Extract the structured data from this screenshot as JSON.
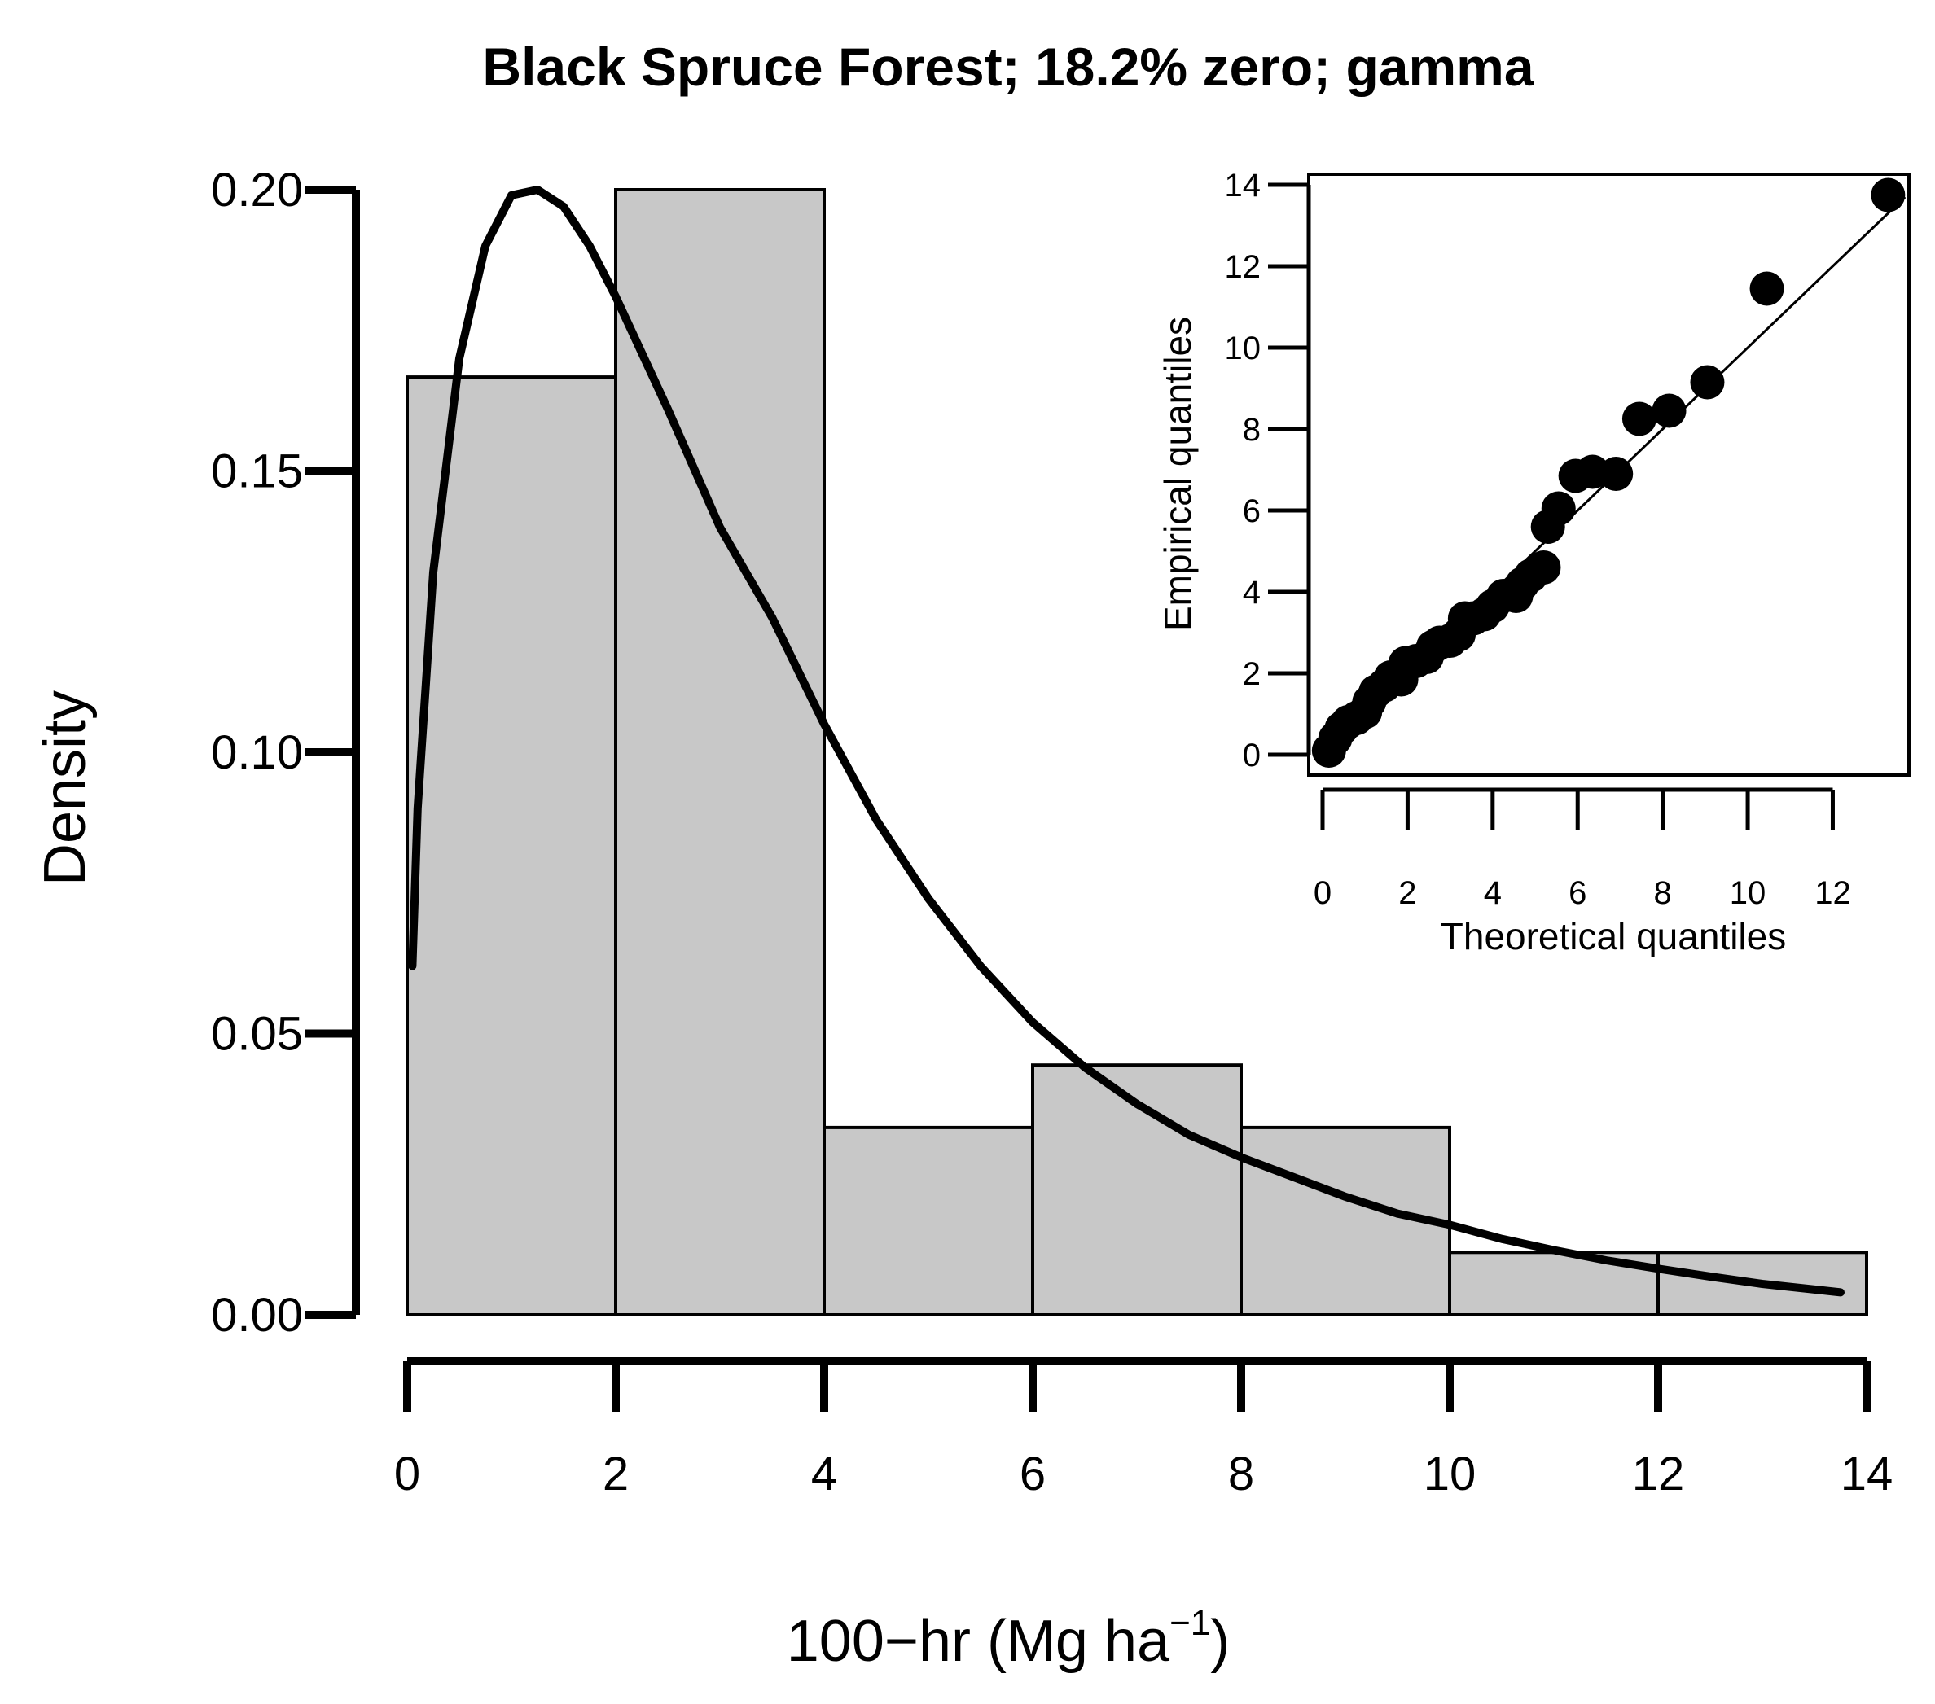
{
  "chart_data": [
    {
      "type": "bar",
      "title": "Black Spruce Forest; 18.2% zero; gamma",
      "xlabel": "100−hr (Mg ha",
      "xlabel_superscript": "−1",
      "xlabel_suffix": ")",
      "ylabel": "Density",
      "xlim": [
        0,
        14
      ],
      "ylim": [
        0,
        0.2
      ],
      "x_ticks": [
        "0",
        "2",
        "4",
        "6",
        "8",
        "10",
        "12",
        "14"
      ],
      "y_ticks": [
        "0.00",
        "0.05",
        "0.10",
        "0.15",
        "0.20"
      ],
      "bins": [
        {
          "x0": 0,
          "x1": 2,
          "density": 0.1667
        },
        {
          "x0": 2,
          "x1": 4,
          "density": 0.2
        },
        {
          "x0": 4,
          "x1": 6,
          "density": 0.0333
        },
        {
          "x0": 6,
          "x1": 8,
          "density": 0.0444
        },
        {
          "x0": 8,
          "x1": 10,
          "density": 0.0333
        },
        {
          "x0": 10,
          "x1": 12,
          "density": 0.0111
        },
        {
          "x0": 12,
          "x1": 14,
          "density": 0.0111
        }
      ],
      "fitted_curve": {
        "distribution": "gamma",
        "points": [
          [
            0.05,
            0.062
          ],
          [
            0.1,
            0.09
          ],
          [
            0.25,
            0.132
          ],
          [
            0.5,
            0.17
          ],
          [
            0.75,
            0.19
          ],
          [
            1.0,
            0.199
          ],
          [
            1.25,
            0.2
          ],
          [
            1.5,
            0.197
          ],
          [
            1.75,
            0.19
          ],
          [
            2.0,
            0.181
          ],
          [
            2.5,
            0.161
          ],
          [
            3.0,
            0.14
          ],
          [
            3.5,
            0.124
          ],
          [
            4.0,
            0.105
          ],
          [
            4.5,
            0.088
          ],
          [
            5.0,
            0.074
          ],
          [
            5.5,
            0.062
          ],
          [
            6.0,
            0.052
          ],
          [
            6.5,
            0.044
          ],
          [
            7.0,
            0.0375
          ],
          [
            7.5,
            0.032
          ],
          [
            8.0,
            0.028
          ],
          [
            8.5,
            0.0245
          ],
          [
            9.0,
            0.021
          ],
          [
            9.5,
            0.018
          ],
          [
            10.0,
            0.016
          ],
          [
            10.5,
            0.0135
          ],
          [
            11.0,
            0.0115
          ],
          [
            11.5,
            0.0097
          ],
          [
            12.0,
            0.0082
          ],
          [
            12.5,
            0.0068
          ],
          [
            13.0,
            0.0055
          ],
          [
            13.5,
            0.0045
          ],
          [
            13.75,
            0.004
          ]
        ]
      },
      "colors": {
        "bar_fill": "#c8c8c8",
        "bar_stroke": "#000000",
        "curve": "#000000"
      }
    },
    {
      "type": "scatter",
      "xlabel": "Theoretical quantiles",
      "ylabel": "Empirical quantiles",
      "xlim": [
        0,
        13.6
      ],
      "ylim": [
        0,
        14
      ],
      "x_ticks": [
        "0",
        "2",
        "4",
        "6",
        "8",
        "10",
        "12"
      ],
      "y_ticks": [
        "0",
        "2",
        "4",
        "6",
        "8",
        "10",
        "12",
        "14"
      ],
      "reference_line": [
        [
          0,
          0
        ],
        [
          13.7,
          13.7
        ]
      ],
      "points": [
        [
          0.15,
          0.1
        ],
        [
          0.3,
          0.4
        ],
        [
          0.45,
          0.65
        ],
        [
          0.6,
          0.8
        ],
        [
          0.8,
          0.9
        ],
        [
          1.0,
          1.05
        ],
        [
          1.1,
          1.3
        ],
        [
          1.25,
          1.55
        ],
        [
          1.45,
          1.7
        ],
        [
          1.6,
          1.9
        ],
        [
          1.85,
          1.85
        ],
        [
          1.95,
          2.25
        ],
        [
          2.2,
          2.3
        ],
        [
          2.45,
          2.4
        ],
        [
          2.6,
          2.65
        ],
        [
          2.75,
          2.75
        ],
        [
          3.0,
          2.8
        ],
        [
          3.2,
          2.95
        ],
        [
          3.35,
          3.35
        ],
        [
          3.55,
          3.35
        ],
        [
          3.8,
          3.45
        ],
        [
          4.0,
          3.65
        ],
        [
          4.25,
          3.9
        ],
        [
          4.55,
          3.9
        ],
        [
          4.7,
          4.2
        ],
        [
          4.9,
          4.4
        ],
        [
          5.2,
          4.6
        ],
        [
          5.3,
          5.6
        ],
        [
          5.55,
          6.05
        ],
        [
          5.95,
          6.85
        ],
        [
          6.35,
          6.95
        ],
        [
          6.9,
          6.9
        ],
        [
          7.45,
          8.25
        ],
        [
          8.15,
          8.45
        ],
        [
          9.05,
          9.15
        ],
        [
          10.45,
          11.45
        ],
        [
          13.3,
          13.75
        ]
      ],
      "colors": {
        "point": "#000000",
        "line": "#000000"
      }
    }
  ]
}
